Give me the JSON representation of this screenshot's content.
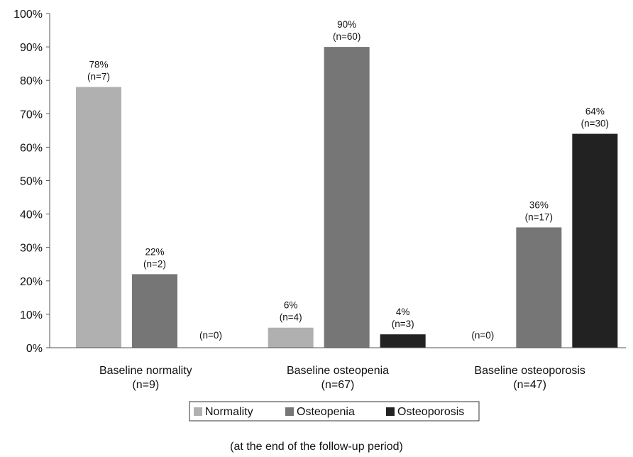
{
  "chart_data": {
    "type": "bar",
    "ylim": [
      0,
      100
    ],
    "yticks": [
      "0%",
      "10%",
      "20%",
      "30%",
      "40%",
      "50%",
      "60%",
      "70%",
      "80%",
      "90%",
      "100%"
    ],
    "categories": [
      {
        "label": "Baseline normality",
        "sublabel": "(n=9)"
      },
      {
        "label": "Baseline osteopenia",
        "sublabel": "(n=67)"
      },
      {
        "label": "Baseline osteoporosis",
        "sublabel": "(n=47)"
      }
    ],
    "series": [
      {
        "name": "Normality",
        "color": "#b0b0b0",
        "values": [
          78,
          6,
          0
        ],
        "labels": [
          [
            "78%",
            "(n=7)"
          ],
          [
            "6%",
            "(n=4)"
          ],
          [
            "",
            "(n=0)"
          ]
        ]
      },
      {
        "name": "Osteopenia",
        "color": "#767676",
        "values": [
          22,
          90,
          36
        ],
        "labels": [
          [
            "22%",
            "(n=2)"
          ],
          [
            "90%",
            "(n=60)"
          ],
          [
            "36%",
            "(n=17)"
          ]
        ]
      },
      {
        "name": "Osteoporosis",
        "color": "#222222",
        "values": [
          0,
          4,
          64
        ],
        "labels": [
          [
            "",
            "(n=0)"
          ],
          [
            "4%",
            "(n=3)"
          ],
          [
            "64%",
            "(n=30)"
          ]
        ]
      }
    ],
    "legend_position": "bottom",
    "grid": false,
    "footnote": "(at the end of the follow-up period)"
  }
}
